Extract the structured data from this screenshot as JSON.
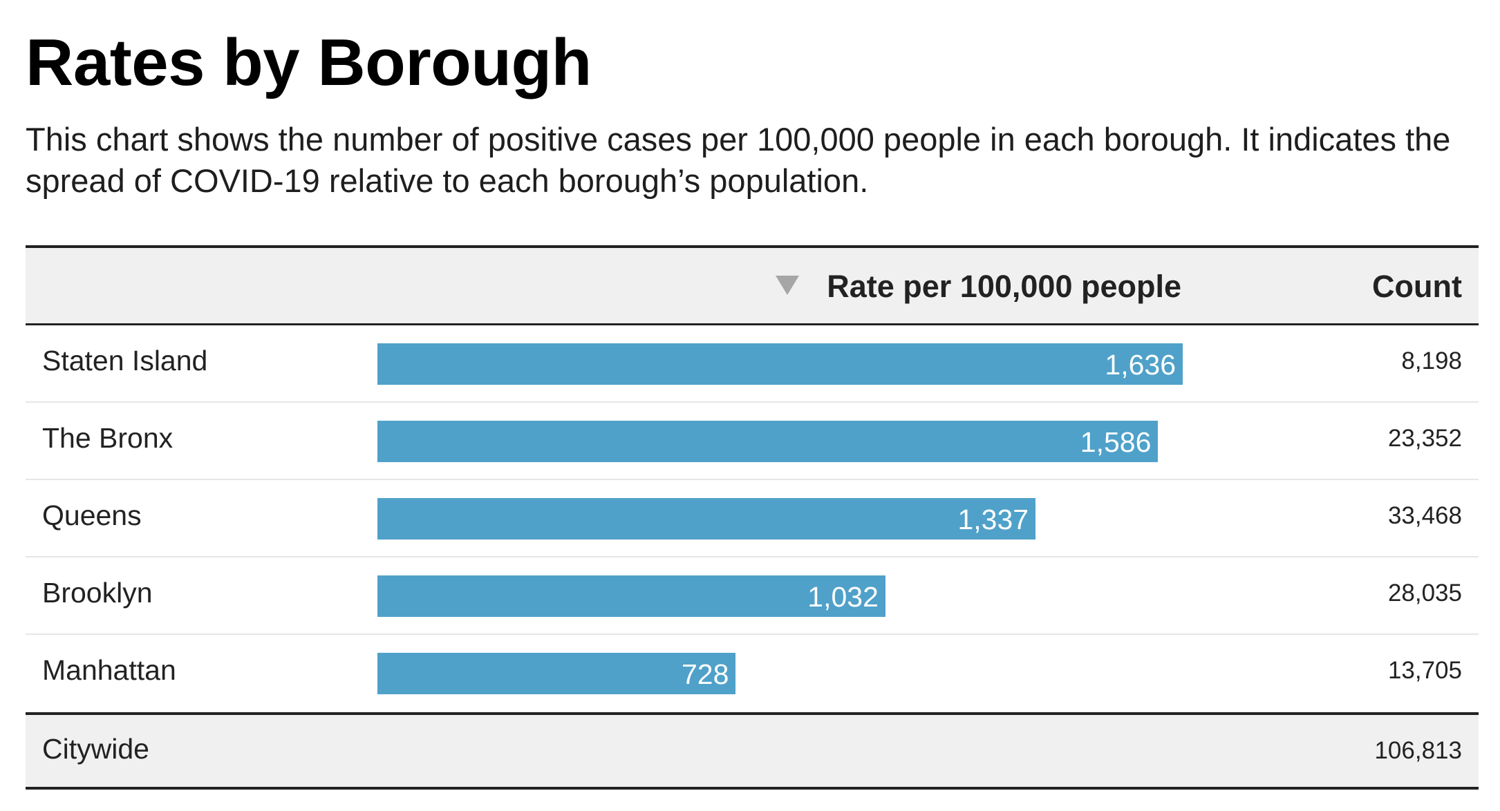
{
  "title": "Rates by Borough",
  "subtitle": "This chart shows the number of positive cases per 100,000 people in each borough. It indicates the spread of COVID-19 relative to each borough’s population.",
  "columns": {
    "rate": "Rate per 100,000 people",
    "count": "Count"
  },
  "colors": {
    "bar": "#4fa1c9",
    "header_bg": "#f0f0f0",
    "sort_arrow": "#a6a6a6"
  },
  "sort": {
    "column": "rate",
    "direction": "descending",
    "icon": "sort-descending-triangle-icon"
  },
  "chart_data": {
    "type": "bar",
    "orientation": "horizontal",
    "categories": [
      "Staten Island",
      "The Bronx",
      "Queens",
      "Brooklyn",
      "Manhattan"
    ],
    "series": [
      {
        "name": "Rate per 100,000 people",
        "values": [
          1636,
          1586,
          1337,
          1032,
          728
        ]
      }
    ],
    "value_labels": [
      "1,636",
      "1,586",
      "1,337",
      "1,032",
      "728"
    ],
    "counts": [
      "8,198",
      "23,352",
      "33,468",
      "28,035",
      "13,705"
    ],
    "total": {
      "label": "Citywide",
      "count": "106,813"
    },
    "xlim": [
      0,
      1636
    ]
  }
}
